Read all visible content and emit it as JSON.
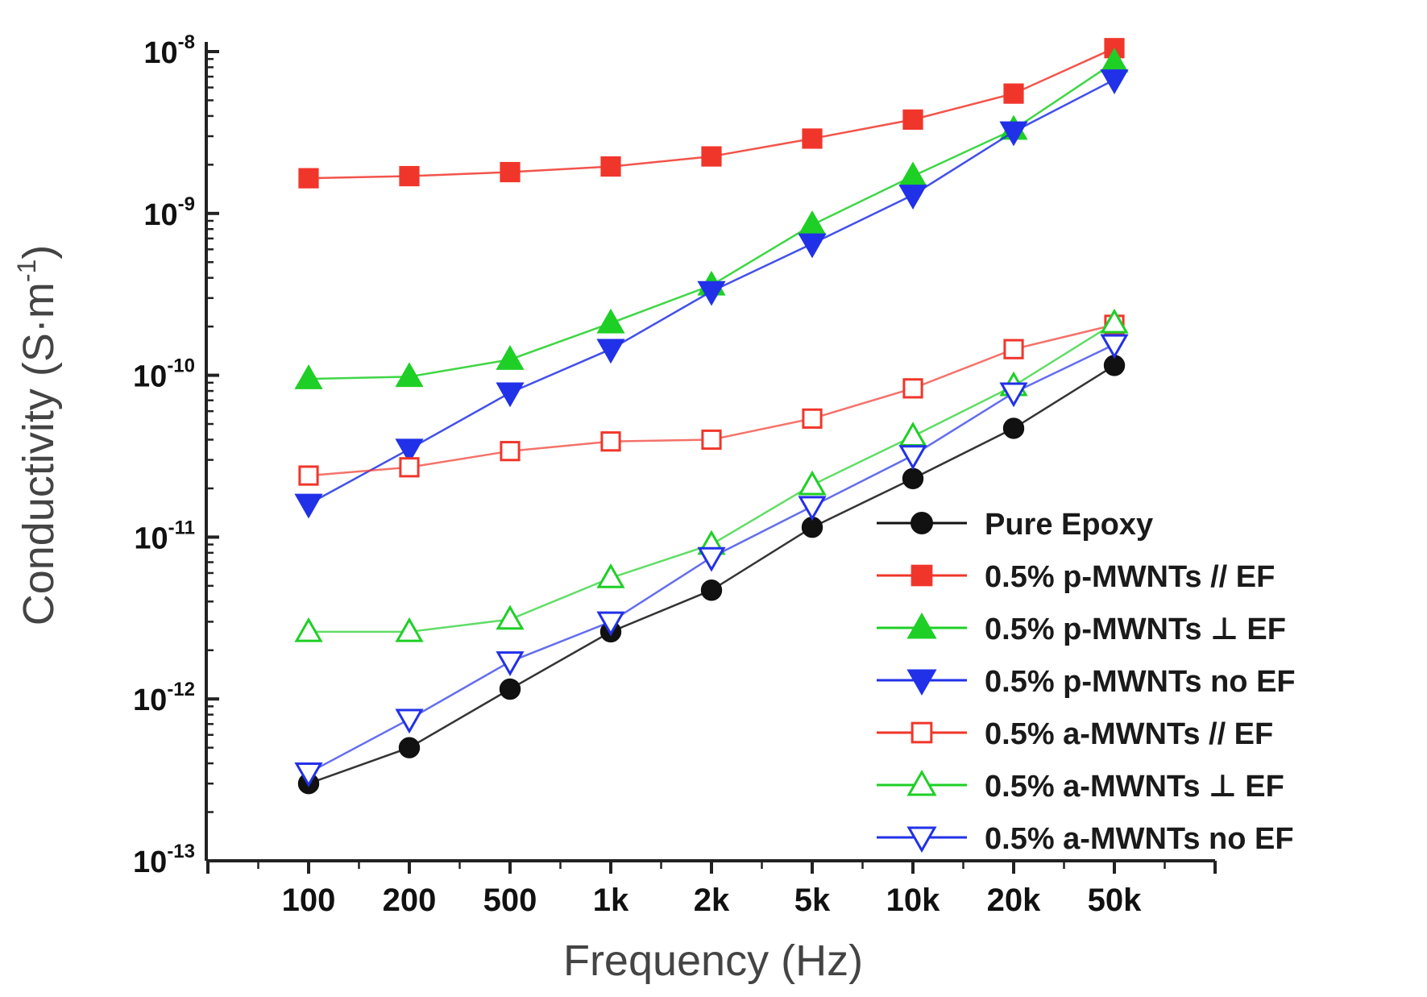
{
  "chart_data": {
    "type": "line",
    "title": "",
    "xlabel": "Frequency (Hz)",
    "ylabel_main": "Conductivity (S",
    "ylabel_dot": "·",
    "ylabel_m": "m",
    "ylabel_sup": "-1",
    "ylabel_close": ")",
    "yscale": "log",
    "ylim": [
      1e-13,
      1e-08
    ],
    "x_categories": [
      "100",
      "200",
      "500",
      "1k",
      "2k",
      "5k",
      "10k",
      "20k",
      "50k"
    ],
    "y_ticks": [
      {
        "value": 1e-13,
        "base": "10",
        "exp": "-13"
      },
      {
        "value": 1e-12,
        "base": "10",
        "exp": "-12"
      },
      {
        "value": 1e-11,
        "base": "10",
        "exp": "-11"
      },
      {
        "value": 1e-10,
        "base": "10",
        "exp": "-10"
      },
      {
        "value": 1e-09,
        "base": "10",
        "exp": "-9"
      },
      {
        "value": 1e-08,
        "base": "10",
        "exp": "-8"
      }
    ],
    "legend_position": "bottom-right",
    "series": [
      {
        "name": "Pure Epoxy",
        "color": "#111111",
        "marker": "circle",
        "filled": true,
        "values": [
          3e-13,
          5e-13,
          1.15e-12,
          2.6e-12,
          4.7e-12,
          1.15e-11,
          2.3e-11,
          4.7e-11,
          1.15e-10
        ]
      },
      {
        "name": "0.5% p-MWNTs // EF",
        "color": "#f0362b",
        "marker": "square",
        "filled": true,
        "values": [
          1.65e-09,
          1.7e-09,
          1.8e-09,
          1.95e-09,
          2.25e-09,
          2.9e-09,
          3.8e-09,
          5.5e-09,
          1.05e-08
        ]
      },
      {
        "name": "0.5% p-MWNTs ⊥ EF",
        "color": "#1ecf26",
        "marker": "triangle-up",
        "filled": true,
        "values": [
          9.5e-11,
          9.8e-11,
          1.25e-10,
          2.1e-10,
          3.6e-10,
          8.5e-10,
          1.7e-09,
          3.3e-09,
          8.6e-09
        ]
      },
      {
        "name": "0.5% p-MWNTs no  EF",
        "color": "#2131e8",
        "marker": "triangle-down",
        "filled": true,
        "values": [
          1.6e-11,
          3.5e-11,
          7.8e-11,
          1.45e-10,
          3.3e-10,
          6.5e-10,
          1.3e-09,
          3.2e-09,
          6.7e-09
        ]
      },
      {
        "name": "0.5% a-MWNTs // EF",
        "color": "#f0362b",
        "marker": "square",
        "filled": false,
        "values": [
          2.4e-11,
          2.7e-11,
          3.4e-11,
          3.9e-11,
          4e-11,
          5.4e-11,
          8.3e-11,
          1.45e-10,
          2.05e-10
        ]
      },
      {
        "name": "0.5% a-MWNTs ⊥ EF",
        "color": "#1ecf26",
        "marker": "triangle-up",
        "filled": false,
        "values": [
          2.6e-12,
          2.6e-12,
          3.1e-12,
          5.6e-12,
          9e-12,
          2.1e-11,
          4.2e-11,
          8.6e-11,
          2.1e-10
        ]
      },
      {
        "name": "0.5% a-MWNTs no  EF",
        "color": "#2131e8",
        "marker": "triangle-down",
        "filled": false,
        "values": [
          3.5e-13,
          7.5e-13,
          1.7e-12,
          3e-12,
          7.5e-12,
          1.55e-11,
          3.2e-11,
          7.8e-11,
          1.55e-10
        ]
      }
    ]
  }
}
